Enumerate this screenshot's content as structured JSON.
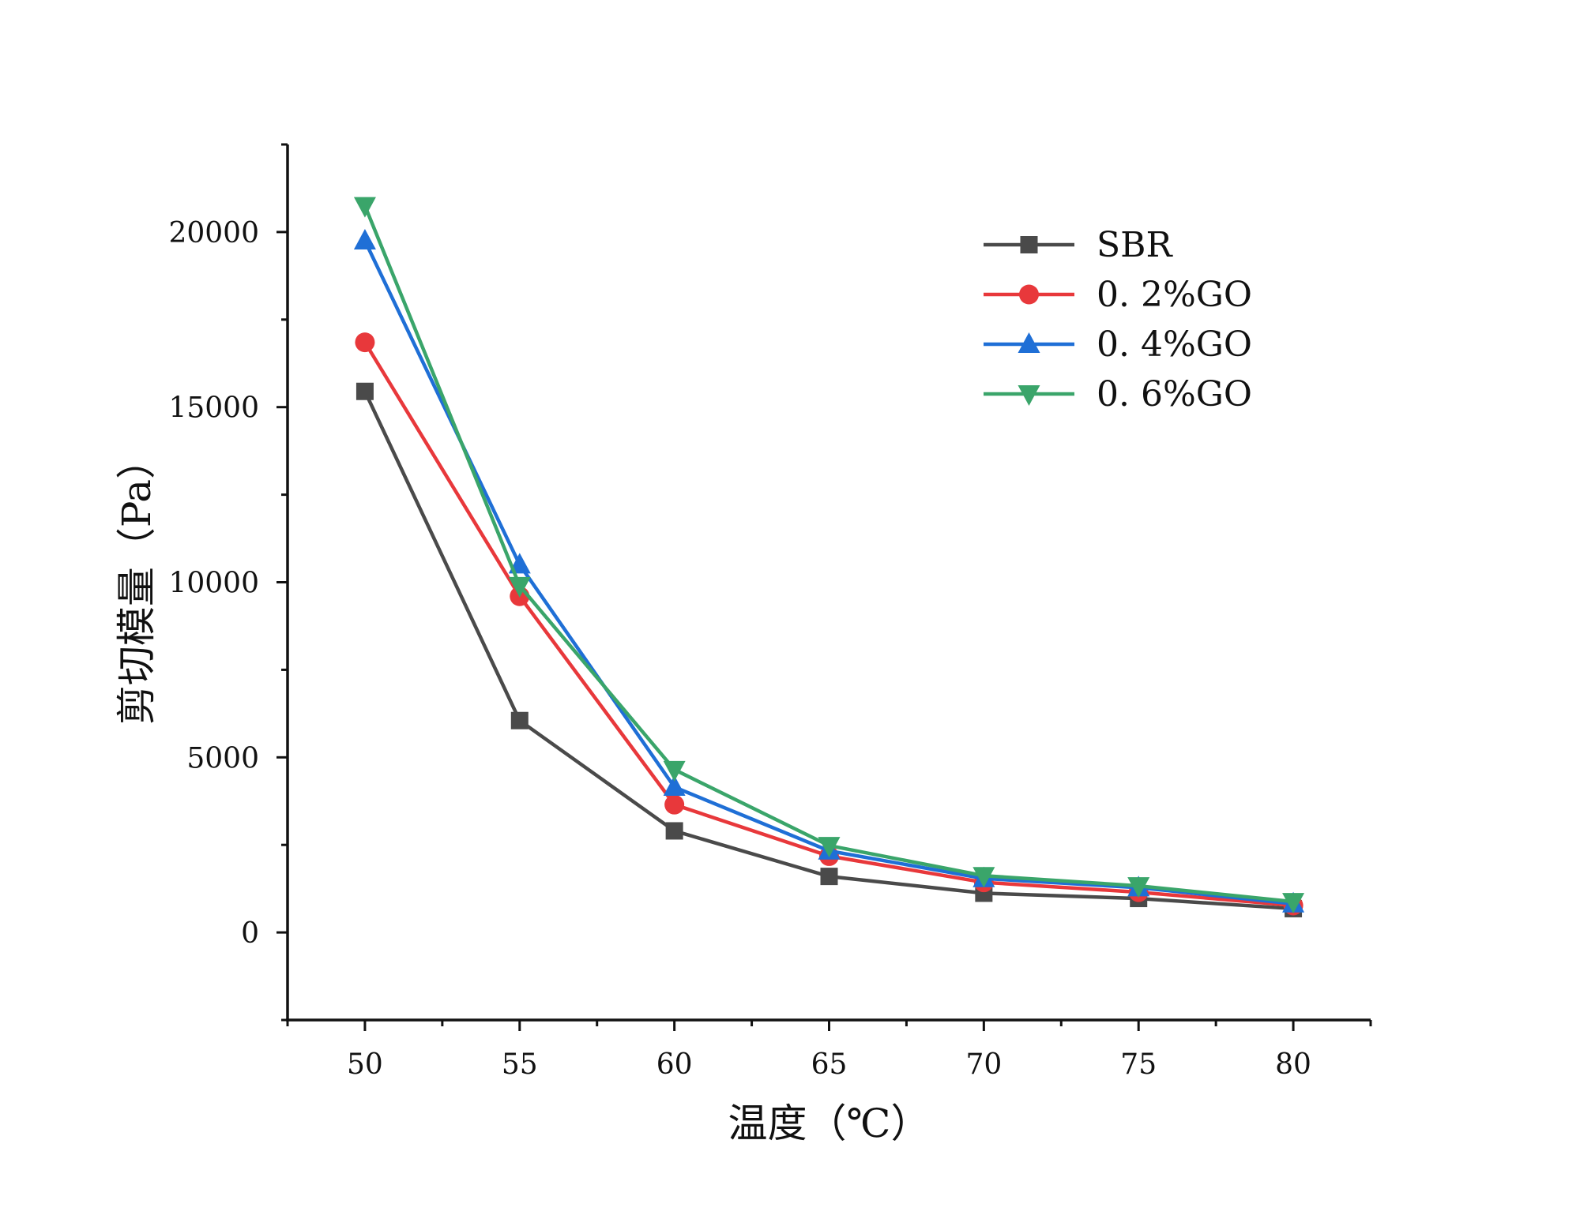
{
  "chart_data": {
    "type": "line",
    "title": "",
    "xlabel": "温度（℃）",
    "ylabel": "剪切模量（Pa）",
    "x": [
      50,
      55,
      60,
      65,
      70,
      75,
      80
    ],
    "xlim": [
      47.5,
      82.5
    ],
    "ylim": [
      -2500,
      22500
    ],
    "xticks": [
      "50",
      "55",
      "60",
      "65",
      "70",
      "75",
      "80"
    ],
    "xtick_values": [
      50,
      55,
      60,
      65,
      70,
      75,
      80
    ],
    "yticks": [
      "0",
      "5000",
      "10000",
      "15000",
      "20000"
    ],
    "ytick_values": [
      0,
      5000,
      10000,
      15000,
      20000
    ],
    "legend_position": "top-right",
    "series": [
      {
        "name": "SBR",
        "color": "#4a4a4a",
        "marker": "square",
        "values": [
          15450,
          6050,
          2900,
          1600,
          1120,
          970,
          680
        ]
      },
      {
        "name": "0. 2%GO",
        "color": "#e8383b",
        "marker": "circle",
        "values": [
          16850,
          9600,
          3650,
          2180,
          1430,
          1150,
          770
        ]
      },
      {
        "name": "0. 4%GO",
        "color": "#1f6fd6",
        "marker": "triangle-up",
        "values": [
          19750,
          10500,
          4150,
          2330,
          1540,
          1280,
          820
        ]
      },
      {
        "name": "0. 6%GO",
        "color": "#3aa56a",
        "marker": "triangle-down",
        "values": [
          20750,
          9900,
          4650,
          2480,
          1620,
          1330,
          880
        ]
      }
    ]
  }
}
